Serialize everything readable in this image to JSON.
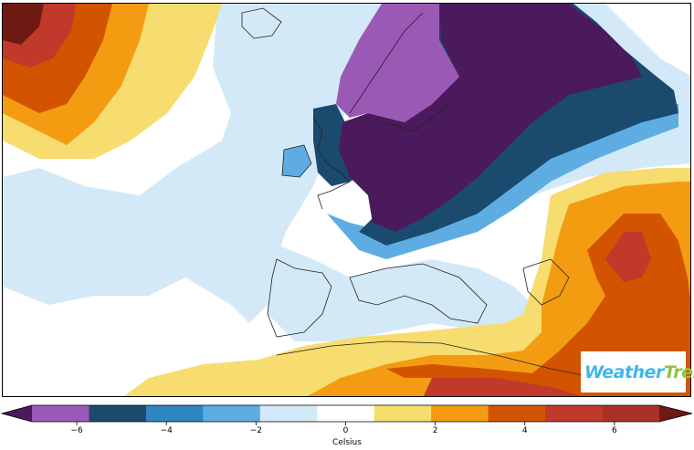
{
  "map": {
    "region": "Europe and North Atlantic",
    "variable": "temperature anomaly",
    "unit": "Celsius"
  },
  "colorbar": {
    "label": "Celsius",
    "colors": [
      "#4a1a5c",
      "#9b59b6",
      "#1a4a6e",
      "#2e86c1",
      "#5dade2",
      "#d4e9f7",
      "#ffffff",
      "#f7dc6f",
      "#f39c12",
      "#d35400",
      "#c0392b",
      "#a93226",
      "#6e1a12"
    ],
    "ticks": [
      {
        "value": -6,
        "label": "−6"
      },
      {
        "value": -4,
        "label": "−4"
      },
      {
        "value": -2,
        "label": "−2"
      },
      {
        "value": 0,
        "label": "0"
      },
      {
        "value": 2,
        "label": "2"
      },
      {
        "value": 4,
        "label": "4"
      },
      {
        "value": 6,
        "label": "6"
      }
    ]
  },
  "logo": {
    "part1": "Weather",
    "part2": "Trend"
  }
}
